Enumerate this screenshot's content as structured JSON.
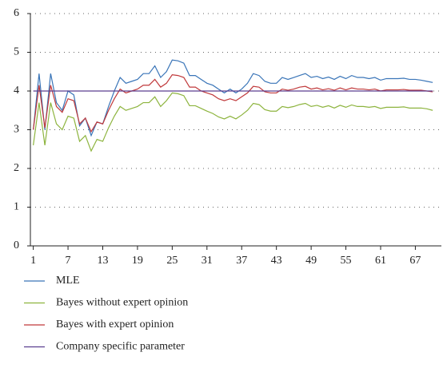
{
  "chart_data": {
    "type": "line",
    "x": [
      1,
      2,
      3,
      4,
      5,
      6,
      7,
      8,
      9,
      10,
      11,
      12,
      13,
      14,
      15,
      16,
      17,
      18,
      19,
      20,
      21,
      22,
      23,
      24,
      25,
      26,
      27,
      28,
      29,
      30,
      31,
      32,
      33,
      34,
      35,
      36,
      37,
      38,
      39,
      40,
      41,
      42,
      43,
      44,
      45,
      46,
      47,
      48,
      49,
      50,
      51,
      52,
      53,
      54,
      55,
      56,
      57,
      58,
      59,
      60,
      61,
      62,
      63,
      64,
      65,
      66,
      67,
      68,
      69,
      70
    ],
    "series": [
      {
        "name": "MLE",
        "color": "#3a75b8",
        "values": [
          3.0,
          4.45,
          3.0,
          4.45,
          3.7,
          3.5,
          4.0,
          3.9,
          3.1,
          3.3,
          2.85,
          3.2,
          3.15,
          3.6,
          4.0,
          4.35,
          4.2,
          4.25,
          4.3,
          4.45,
          4.45,
          4.65,
          4.35,
          4.5,
          4.8,
          4.78,
          4.72,
          4.4,
          4.4,
          4.3,
          4.2,
          4.15,
          4.05,
          3.95,
          4.05,
          3.95,
          4.05,
          4.2,
          4.45,
          4.4,
          4.25,
          4.2,
          4.2,
          4.35,
          4.3,
          4.35,
          4.4,
          4.45,
          4.35,
          4.38,
          4.32,
          4.36,
          4.3,
          4.38,
          4.32,
          4.4,
          4.35,
          4.35,
          4.32,
          4.35,
          4.28,
          4.32,
          4.32,
          4.32,
          4.33,
          4.3,
          4.3,
          4.28,
          4.25,
          4.22
        ]
      },
      {
        "name": "Bayes without expert opinion",
        "color": "#8db43e",
        "values": [
          2.6,
          3.7,
          2.6,
          3.7,
          3.15,
          3.0,
          3.35,
          3.3,
          2.7,
          2.85,
          2.45,
          2.75,
          2.7,
          3.05,
          3.35,
          3.6,
          3.5,
          3.55,
          3.6,
          3.7,
          3.7,
          3.85,
          3.6,
          3.75,
          3.95,
          3.93,
          3.88,
          3.62,
          3.62,
          3.55,
          3.48,
          3.42,
          3.33,
          3.28,
          3.35,
          3.28,
          3.38,
          3.5,
          3.68,
          3.65,
          3.52,
          3.48,
          3.48,
          3.6,
          3.57,
          3.6,
          3.65,
          3.68,
          3.6,
          3.63,
          3.58,
          3.62,
          3.56,
          3.63,
          3.58,
          3.64,
          3.6,
          3.6,
          3.58,
          3.6,
          3.55,
          3.58,
          3.58,
          3.58,
          3.59,
          3.56,
          3.56,
          3.56,
          3.54,
          3.5
        ]
      },
      {
        "name": "Bayes with expert opinion",
        "color": "#c0393b",
        "values": [
          3.0,
          4.15,
          3.05,
          4.15,
          3.6,
          3.45,
          3.8,
          3.75,
          3.15,
          3.3,
          2.95,
          3.2,
          3.15,
          3.5,
          3.8,
          4.05,
          3.95,
          4.0,
          4.05,
          4.15,
          4.15,
          4.3,
          4.1,
          4.2,
          4.42,
          4.4,
          4.35,
          4.1,
          4.1,
          4.0,
          3.95,
          3.9,
          3.8,
          3.75,
          3.8,
          3.75,
          3.85,
          3.95,
          4.12,
          4.1,
          3.98,
          3.95,
          3.95,
          4.05,
          4.02,
          4.05,
          4.1,
          4.12,
          4.05,
          4.08,
          4.03,
          4.06,
          4.02,
          4.08,
          4.03,
          4.08,
          4.05,
          4.05,
          4.03,
          4.05,
          4.0,
          4.03,
          4.03,
          4.03,
          4.04,
          4.02,
          4.02,
          4.02,
          4.0,
          3.98
        ]
      },
      {
        "name": "Company specific parameter",
        "color": "#5b3f8f",
        "values": [
          4,
          4,
          4,
          4,
          4,
          4,
          4,
          4,
          4,
          4,
          4,
          4,
          4,
          4,
          4,
          4,
          4,
          4,
          4,
          4,
          4,
          4,
          4,
          4,
          4,
          4,
          4,
          4,
          4,
          4,
          4,
          4,
          4,
          4,
          4,
          4,
          4,
          4,
          4,
          4,
          4,
          4,
          4,
          4,
          4,
          4,
          4,
          4,
          4,
          4,
          4,
          4,
          4,
          4,
          4,
          4,
          4,
          4,
          4,
          4,
          4,
          4,
          4,
          4,
          4,
          4,
          4,
          4,
          4,
          4
        ]
      }
    ],
    "xlim": [
      0.5,
      71.5
    ],
    "xticks": [
      1,
      7,
      13,
      19,
      25,
      31,
      37,
      43,
      49,
      55,
      61,
      67
    ],
    "ylim": [
      0,
      6
    ],
    "yticks": [
      0,
      1,
      2,
      3,
      4,
      5,
      6
    ],
    "grid": true
  }
}
